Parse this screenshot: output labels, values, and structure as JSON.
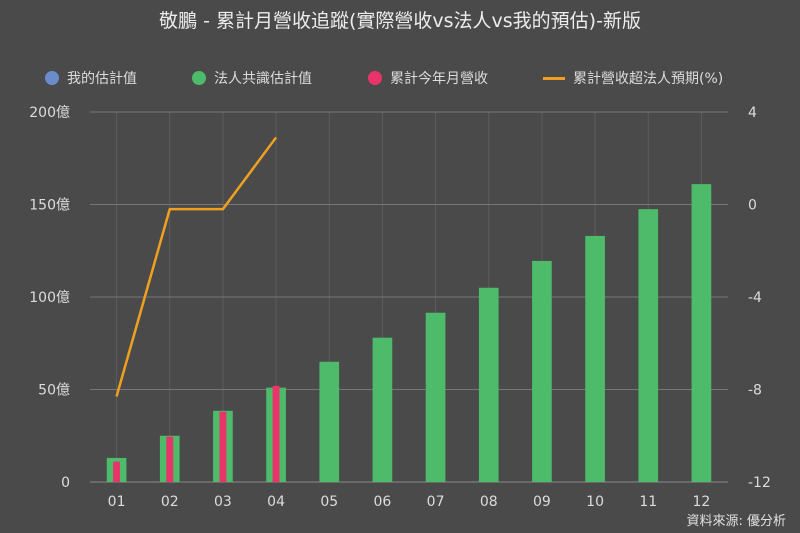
{
  "title": "敬鵬 - 累計月營收追蹤(實際營收vs法人vs我的預估)-新版",
  "source": "資料來源: 優分析",
  "legend": [
    {
      "label": "我的估計值",
      "kind": "dot",
      "color": "#6b8ccc"
    },
    {
      "label": "法人共識估計值",
      "kind": "dot",
      "color": "#4dbb6a"
    },
    {
      "label": "累計今年月營收",
      "kind": "dot",
      "color": "#e8336b"
    },
    {
      "label": "累計營收超法人預期(%)",
      "kind": "line",
      "color": "#f0a020"
    }
  ],
  "chart_data": {
    "type": "bar",
    "categories": [
      "01",
      "02",
      "03",
      "04",
      "05",
      "06",
      "07",
      "08",
      "09",
      "10",
      "11",
      "12"
    ],
    "series": [
      {
        "name": "法人共識估計值",
        "type": "bar",
        "axis": "left",
        "color": "#4dbb6a",
        "values": [
          13,
          25,
          38.5,
          51,
          65,
          78,
          91.5,
          105,
          119.5,
          133,
          147.5,
          161
        ]
      },
      {
        "name": "累計今年月營收",
        "type": "bar",
        "axis": "left",
        "color": "#e8336b",
        "values": [
          11,
          24.5,
          38,
          52,
          null,
          null,
          null,
          null,
          null,
          null,
          null,
          null
        ]
      },
      {
        "name": "累計營收超法人預期(%)",
        "type": "line",
        "axis": "right",
        "color": "#f0a020",
        "values": [
          -8.3,
          -0.2,
          -0.2,
          2.9,
          null,
          null,
          null,
          null,
          null,
          null,
          null,
          null
        ]
      }
    ],
    "left_axis": {
      "min": 0,
      "max": 200,
      "ticks": [
        0,
        50,
        100,
        150,
        200
      ],
      "tick_labels": [
        "0",
        "50億",
        "100億",
        "150億",
        "200億"
      ]
    },
    "right_axis": {
      "min": -12,
      "max": 4,
      "ticks": [
        -12,
        -8,
        -4,
        0,
        4
      ],
      "tick_labels": [
        "-12",
        "-8",
        "-4",
        "0",
        "4"
      ]
    },
    "grid": true,
    "legend_position": "top"
  }
}
